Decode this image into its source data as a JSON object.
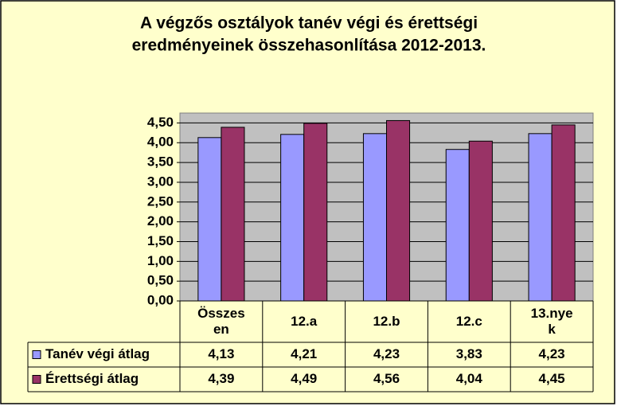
{
  "chart_data": {
    "type": "bar",
    "title": [
      "A végzős osztályok tanév végi és érettségi",
      "eredményeinek összehasonlítása 2012-2013."
    ],
    "categories": [
      "Összesen",
      "12.a",
      "12.b",
      "12.c",
      "13.nyek"
    ],
    "series": [
      {
        "name": "Tanév végi átlag",
        "color": "#9999ff",
        "values": [
          4.13,
          4.21,
          4.23,
          3.83,
          4.23
        ],
        "value_labels": [
          "4,13",
          "4,21",
          "4,23",
          "3,83",
          "4,23"
        ]
      },
      {
        "name": "Érettségi átlag",
        "color": "#993366",
        "values": [
          4.39,
          4.49,
          4.56,
          4.04,
          4.45
        ],
        "value_labels": [
          "4,39",
          "4,49",
          "4,56",
          "4,04",
          "4,45"
        ]
      }
    ],
    "ylim": [
      0,
      4.75
    ],
    "yticks": [
      {
        "value": 0,
        "label": "0,00"
      },
      {
        "value": 0.5,
        "label": "0,50"
      },
      {
        "value": 1,
        "label": "1,00"
      },
      {
        "value": 1.5,
        "label": "1,50"
      },
      {
        "value": 2,
        "label": "2,00"
      },
      {
        "value": 2.5,
        "label": "2,50"
      },
      {
        "value": 3,
        "label": "3,00"
      },
      {
        "value": 3.5,
        "label": "3,50"
      },
      {
        "value": 4,
        "label": "4,00"
      },
      {
        "value": 4.5,
        "label": "4,50"
      }
    ],
    "grid": true
  }
}
